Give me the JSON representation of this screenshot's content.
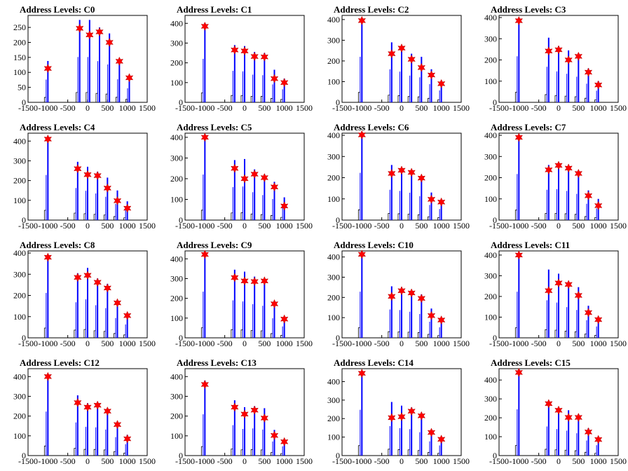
{
  "chart_data": {
    "type": "histogram",
    "grid": false,
    "xlim": [
      -1500,
      1500
    ],
    "x_ticks": [
      "-1500",
      "-1000",
      "-500",
      "0",
      "500",
      "1000",
      "1500"
    ],
    "line_color": "#0000ff",
    "marker_color": "#ff0000",
    "panels": [
      {
        "title": "Address Levels: C0",
        "ylim": [
          0,
          290
        ],
        "yticks": [
          "0",
          "50",
          "100",
          "150",
          "200",
          "250"
        ],
        "peaks_x": [
          -1000,
          -200,
          50,
          300,
          550,
          800,
          1050
        ],
        "bar_heights": [
          138,
          275,
          275,
          250,
          230,
          140,
          85
        ],
        "markers_y": [
          113,
          247,
          225,
          235,
          200,
          137,
          82
        ]
      },
      {
        "title": "Address Levels: C1",
        "ylim": [
          0,
          440
        ],
        "yticks": [
          "0",
          "100",
          "200",
          "300",
          "400"
        ],
        "peaks_x": [
          -1000,
          -250,
          0,
          250,
          500,
          750,
          1000
        ],
        "bar_heights": [
          400,
          290,
          285,
          255,
          250,
          165,
          120
        ],
        "markers_y": [
          385,
          265,
          260,
          232,
          230,
          120,
          100
        ]
      },
      {
        "title": "Address Levels: C2",
        "ylim": [
          0,
          420
        ],
        "yticks": [
          "0",
          "100",
          "200",
          "300",
          "400"
        ],
        "peaks_x": [
          -1000,
          -250,
          0,
          250,
          500,
          750,
          1000
        ],
        "bar_heights": [
          400,
          290,
          270,
          235,
          220,
          160,
          105
        ],
        "markers_y": [
          395,
          235,
          262,
          208,
          168,
          132,
          90
        ]
      },
      {
        "title": "Address Levels: C3",
        "ylim": [
          0,
          410
        ],
        "yticks": [
          "0",
          "100",
          "200",
          "300",
          "400"
        ],
        "peaks_x": [
          -1000,
          -250,
          0,
          250,
          500,
          750,
          1000
        ],
        "bar_heights": [
          395,
          305,
          265,
          245,
          220,
          160,
          100
        ],
        "markers_y": [
          385,
          242,
          248,
          200,
          217,
          142,
          82
        ]
      },
      {
        "title": "Address Levels: C4",
        "ylim": [
          0,
          440
        ],
        "yticks": [
          "0",
          "100",
          "200",
          "300",
          "400"
        ],
        "peaks_x": [
          -1000,
          -250,
          0,
          250,
          500,
          750,
          1000
        ],
        "bar_heights": [
          415,
          295,
          270,
          245,
          215,
          150,
          95
        ],
        "markers_y": [
          410,
          260,
          230,
          225,
          162,
          98,
          60
        ]
      },
      {
        "title": "Address Levels: C5",
        "ylim": [
          0,
          420
        ],
        "yticks": [
          "0",
          "100",
          "200",
          "300",
          "400"
        ],
        "peaks_x": [
          -1000,
          -250,
          0,
          250,
          500,
          750,
          1000
        ],
        "bar_heights": [
          400,
          290,
          295,
          245,
          220,
          185,
          110
        ],
        "markers_y": [
          400,
          250,
          200,
          222,
          205,
          160,
          68
        ]
      },
      {
        "title": "Address Levels: C6",
        "ylim": [
          0,
          410
        ],
        "yticks": [
          "0",
          "100",
          "200",
          "300",
          "400"
        ],
        "peaks_x": [
          -1000,
          -250,
          0,
          250,
          500,
          750,
          1000
        ],
        "bar_heights": [
          405,
          260,
          250,
          235,
          205,
          130,
          95
        ],
        "markers_y": [
          402,
          220,
          235,
          225,
          198,
          98,
          85
        ]
      },
      {
        "title": "Address Levels: C7",
        "ylim": [
          0,
          410
        ],
        "yticks": [
          "0",
          "100",
          "200",
          "300",
          "400"
        ],
        "peaks_x": [
          -1000,
          -250,
          0,
          250,
          500,
          750,
          1000
        ],
        "bar_heights": [
          395,
          260,
          265,
          250,
          225,
          140,
          100
        ],
        "markers_y": [
          390,
          237,
          258,
          245,
          220,
          115,
          68
        ]
      },
      {
        "title": "Address Levels: C8",
        "ylim": [
          0,
          410
        ],
        "yticks": [
          "0",
          "100",
          "200",
          "300",
          "400"
        ],
        "peaks_x": [
          -1000,
          -250,
          0,
          250,
          500,
          750,
          1000
        ],
        "bar_heights": [
          385,
          305,
          330,
          280,
          255,
          170,
          115
        ],
        "markers_y": [
          380,
          285,
          295,
          262,
          235,
          165,
          105
        ]
      },
      {
        "title": "Address Levels: C9",
        "ylim": [
          0,
          440
        ],
        "yticks": [
          "0",
          "100",
          "200",
          "300",
          "400"
        ],
        "peaks_x": [
          -1000,
          -250,
          0,
          250,
          500,
          750,
          1000
        ],
        "bar_heights": [
          425,
          345,
          335,
          310,
          295,
          180,
          105
        ],
        "markers_y": [
          422,
          305,
          288,
          285,
          288,
          172,
          95
        ]
      },
      {
        "title": "Address Levels: C10",
        "ylim": [
          0,
          430
        ],
        "yticks": [
          "0",
          "100",
          "200",
          "300",
          "400"
        ],
        "peaks_x": [
          -1000,
          -250,
          0,
          250,
          500,
          750,
          1000
        ],
        "bar_heights": [
          415,
          255,
          250,
          235,
          215,
          145,
          95
        ],
        "markers_y": [
          413,
          205,
          233,
          222,
          195,
          110,
          88
        ]
      },
      {
        "title": "Address Levels: C11",
        "ylim": [
          0,
          420
        ],
        "yticks": [
          "0",
          "100",
          "200",
          "300",
          "400"
        ],
        "peaks_x": [
          -1000,
          -250,
          0,
          250,
          500,
          750,
          1000
        ],
        "bar_heights": [
          405,
          330,
          310,
          270,
          245,
          155,
          100
        ],
        "markers_y": [
          400,
          228,
          265,
          258,
          205,
          122,
          88
        ]
      },
      {
        "title": "Address Levels: C12",
        "ylim": [
          0,
          440
        ],
        "yticks": [
          "0",
          "100",
          "200",
          "300",
          "400"
        ],
        "peaks_x": [
          -1000,
          -250,
          0,
          250,
          500,
          750,
          1000
        ],
        "bar_heights": [
          405,
          305,
          265,
          260,
          240,
          170,
          105
        ],
        "markers_y": [
          400,
          268,
          245,
          255,
          225,
          157,
          85
        ]
      },
      {
        "title": "Address Levels: C13",
        "ylim": [
          0,
          440
        ],
        "yticks": [
          "0",
          "100",
          "200",
          "300",
          "400"
        ],
        "peaks_x": [
          -1000,
          -250,
          0,
          250,
          500,
          750,
          1000
        ],
        "bar_heights": [
          380,
          280,
          245,
          250,
          240,
          130,
          85
        ],
        "markers_y": [
          360,
          245,
          210,
          230,
          190,
          102,
          70
        ]
      },
      {
        "title": "Address Levels: C14",
        "ylim": [
          0,
          470
        ],
        "yticks": [
          "0",
          "100",
          "200",
          "300",
          "400"
        ],
        "peaks_x": [
          -1000,
          -250,
          0,
          250,
          500,
          750,
          1000
        ],
        "bar_heights": [
          450,
          290,
          270,
          260,
          230,
          140,
          100
        ],
        "markers_y": [
          445,
          205,
          210,
          240,
          215,
          125,
          88
        ]
      },
      {
        "title": "Address Levels: C15",
        "ylim": [
          0,
          460
        ],
        "yticks": [
          "0",
          "100",
          "200",
          "300",
          "400"
        ],
        "peaks_x": [
          -1000,
          -250,
          0,
          250,
          500,
          750,
          1000
        ],
        "bar_heights": [
          445,
          280,
          255,
          240,
          215,
          145,
          100
        ],
        "markers_y": [
          440,
          275,
          240,
          202,
          202,
          125,
          85
        ]
      }
    ]
  }
}
